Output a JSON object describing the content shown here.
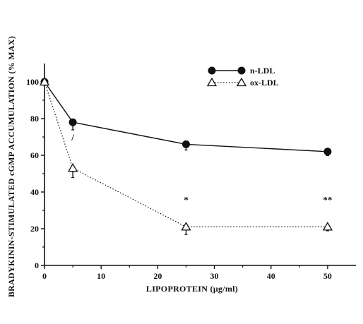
{
  "chart_data": {
    "type": "line",
    "title": "",
    "xlabel": "LIPOPROTEIN (μg/ml)",
    "ylabel": "BRADYKININ-STIMULATED cGMP ACCUMULATION (% MAX)",
    "xlim": [
      0,
      55
    ],
    "ylim": [
      0,
      110
    ],
    "x_ticks": [
      "0",
      "10",
      "20",
      "30",
      "40",
      "50"
    ],
    "y_ticks": [
      "0",
      "20",
      "40",
      "60",
      "80",
      "100"
    ],
    "grid": false,
    "legend_position": "top-right",
    "series": [
      {
        "name": "n-LDL",
        "marker": "filled-circle",
        "line": "solid",
        "x": [
          0,
          5,
          25,
          50
        ],
        "y": [
          100,
          78,
          66,
          62
        ],
        "err": [
          0,
          3,
          2,
          1
        ]
      },
      {
        "name": "ox-LDL",
        "marker": "open-triangle",
        "line": "dotted",
        "x": [
          0,
          5,
          25,
          50
        ],
        "y": [
          100,
          53,
          21,
          21
        ],
        "err": [
          0,
          4,
          3,
          1
        ]
      }
    ],
    "annotations": [
      {
        "text": "/",
        "x": 5,
        "y": 68
      },
      {
        "text": "*",
        "x": 25,
        "y": 34
      },
      {
        "text": "**",
        "x": 50,
        "y": 34
      }
    ],
    "colors": {
      "ink": "#111111",
      "background": "#ffffff"
    }
  }
}
